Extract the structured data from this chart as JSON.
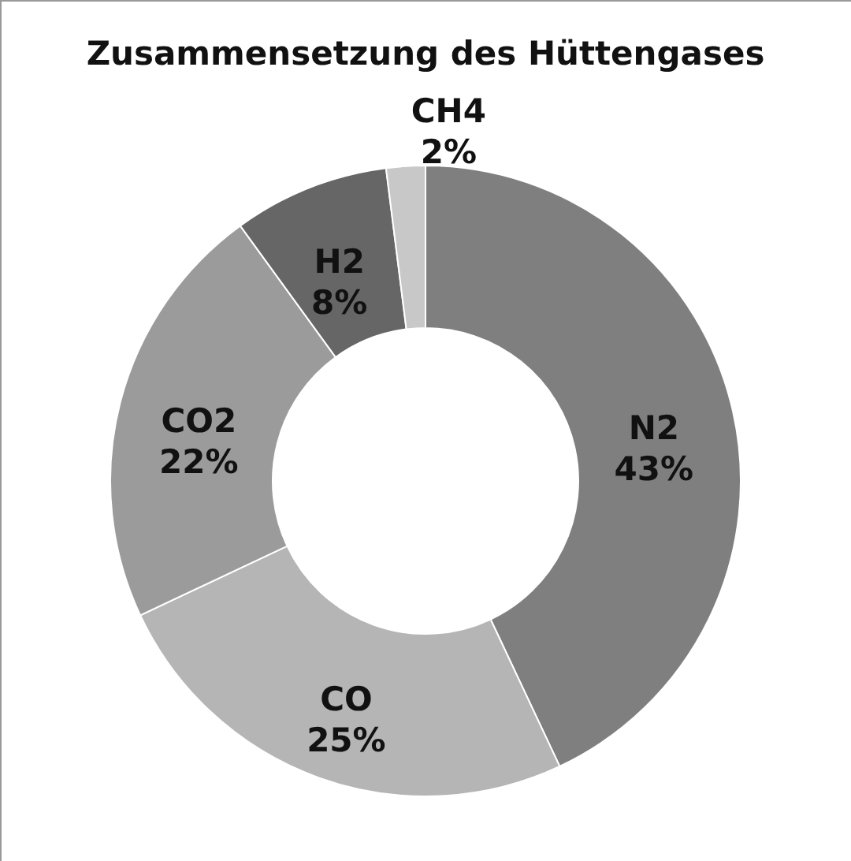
{
  "chart_data": {
    "type": "donut",
    "title": "Zusammensetzung des Hüttengases",
    "categories": [
      "N2",
      "CO",
      "CO2",
      "H2",
      "CH4"
    ],
    "values": [
      43,
      25,
      22,
      8,
      2
    ],
    "colors": [
      "#7f7f7f",
      "#b5b5b5",
      "#9b9b9b",
      "#666666",
      "#c8c8c8"
    ],
    "value_labels": [
      "43%",
      "25%",
      "22%",
      "8%",
      "2%"
    ],
    "legend": false
  }
}
